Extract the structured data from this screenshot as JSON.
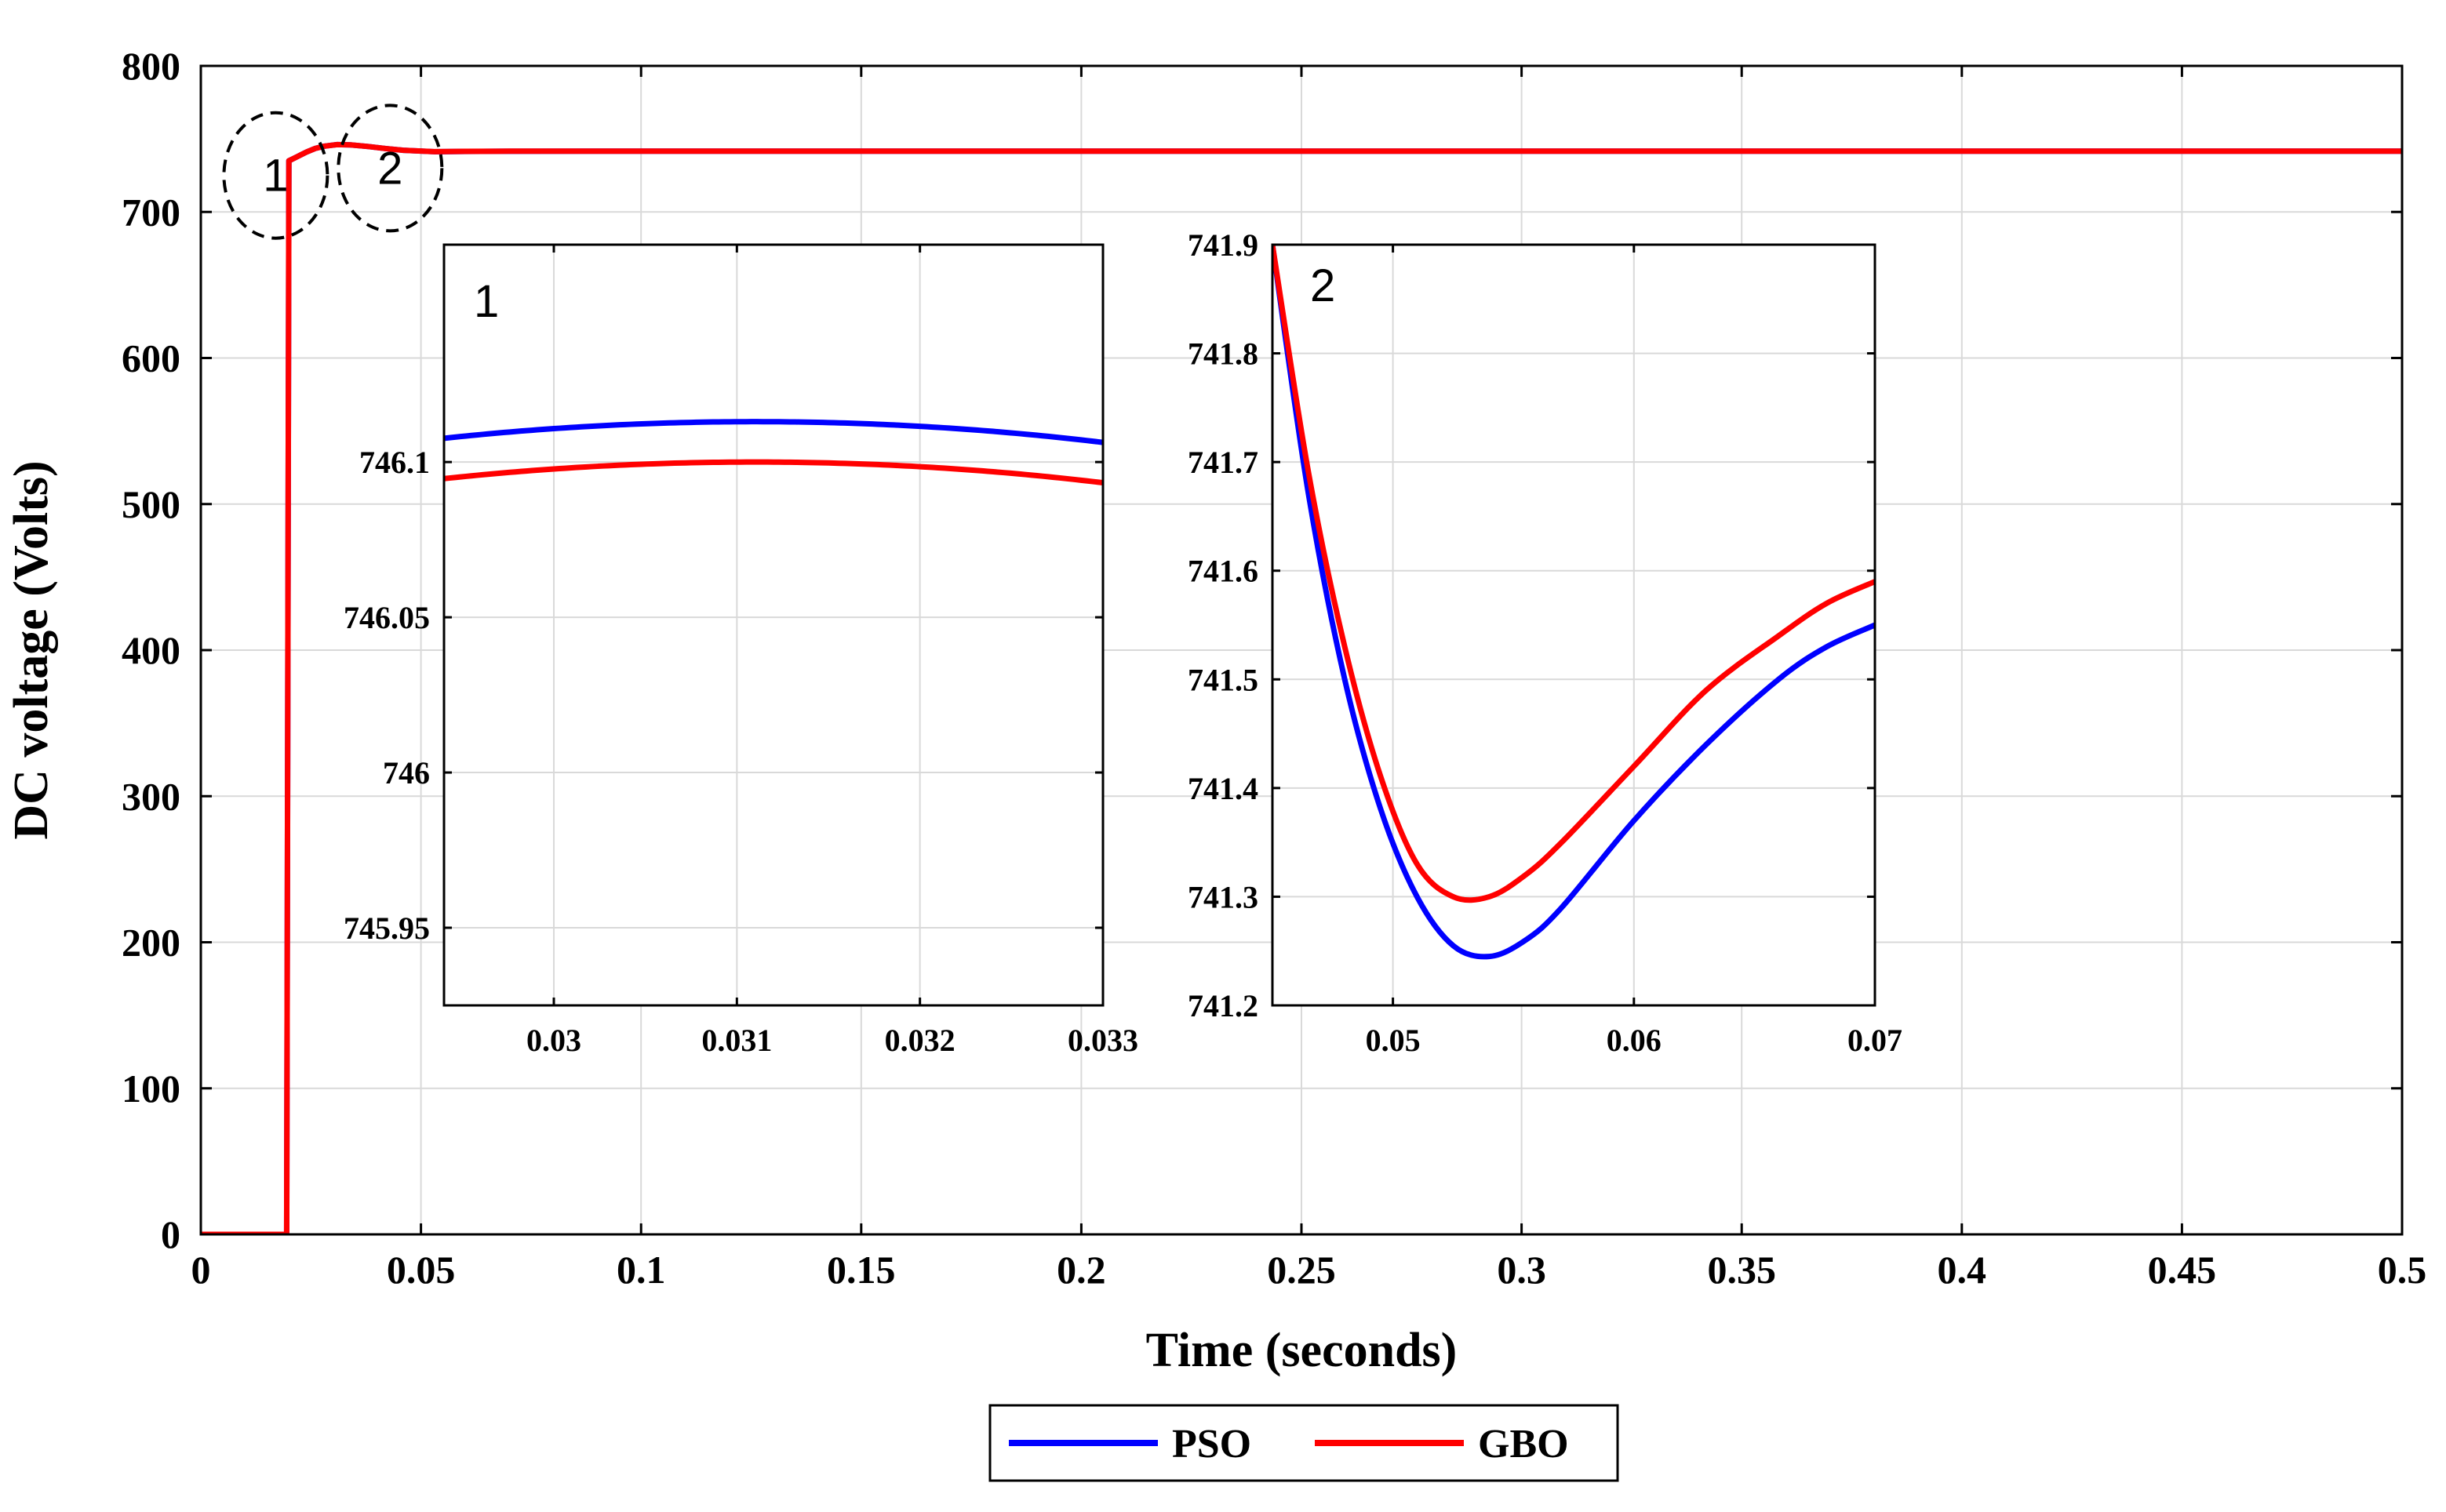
{
  "chart_data": [
    {
      "id": "main",
      "type": "line",
      "title": "",
      "xlabel": "Time (seconds)",
      "ylabel": "DC voltage (Volts)",
      "xlim": [
        0,
        0.5
      ],
      "ylim": [
        0,
        800
      ],
      "xticks": [
        0,
        0.05,
        0.1,
        0.15,
        0.2,
        0.25,
        0.3,
        0.35,
        0.4,
        0.45,
        0.5
      ],
      "xtick_labels": [
        "0",
        "0.05",
        "0.1",
        "0.15",
        "0.2",
        "0.25",
        "0.3",
        "0.35",
        "0.4",
        "0.45",
        "0.5"
      ],
      "yticks": [
        0,
        100,
        200,
        300,
        400,
        500,
        600,
        700,
        800
      ],
      "ytick_labels": [
        "0",
        "100",
        "200",
        "300",
        "400",
        "500",
        "600",
        "700",
        "800"
      ],
      "grid": true,
      "series": [
        {
          "name": "PSO",
          "color": "#0000ff",
          "x": [
            0,
            0.019,
            0.0195,
            0.02,
            0.022,
            0.024,
            0.026,
            0.028,
            0.031,
            0.034,
            0.038,
            0.042,
            0.046,
            0.053,
            0.06,
            0.07,
            0.1,
            0.5
          ],
          "y": [
            0,
            0,
            0,
            735,
            738,
            741,
            743.5,
            745,
            746.13,
            745.9,
            744.8,
            743.4,
            742.2,
            741.24,
            741.4,
            741.55,
            741.6,
            741.6
          ]
        },
        {
          "name": "GBO",
          "color": "#ff0000",
          "x": [
            0,
            0.019,
            0.0195,
            0.02,
            0.022,
            0.024,
            0.026,
            0.028,
            0.031,
            0.034,
            0.038,
            0.042,
            0.046,
            0.053,
            0.06,
            0.07,
            0.1,
            0.5
          ],
          "y": [
            0,
            0,
            0,
            735,
            738,
            741,
            743.5,
            745,
            746.1,
            745.9,
            744.8,
            743.4,
            742.2,
            741.3,
            741.45,
            741.59,
            741.6,
            741.6
          ]
        }
      ],
      "annotations": [
        {
          "label": "1",
          "x": 0.017,
          "y": 725
        },
        {
          "label": "2",
          "x": 0.043,
          "y": 730
        }
      ]
    },
    {
      "id": "inset1",
      "type": "line",
      "title": "1",
      "xlim": [
        0.0294,
        0.033
      ],
      "ylim": [
        745.925,
        746.17
      ],
      "xticks": [
        0.03,
        0.031,
        0.032,
        0.033
      ],
      "xtick_labels": [
        "0.03",
        "0.031",
        "0.032",
        "0.033"
      ],
      "yticks": [
        745.95,
        746,
        746.05,
        746.1
      ],
      "ytick_labels": [
        "745.95",
        "746",
        "746.05",
        "746.1"
      ],
      "grid": true,
      "series": [
        {
          "name": "PSO",
          "color": "#0000ff",
          "peak_x": 0.0311,
          "peak_y": 746.113,
          "curvature": 88.5
        },
        {
          "name": "GBO",
          "color": "#ff0000",
          "peak_x": 0.0311,
          "peak_y": 746.1,
          "curvature": 88.5
        }
      ]
    },
    {
      "id": "inset2",
      "type": "line",
      "title": "2",
      "xlim": [
        0.045,
        0.07
      ],
      "ylim": [
        741.2,
        741.9
      ],
      "xticks": [
        0.05,
        0.06,
        0.07
      ],
      "xtick_labels": [
        "0.05",
        "0.06",
        "0.07"
      ],
      "yticks": [
        741.2,
        741.3,
        741.4,
        741.5,
        741.6,
        741.7,
        741.8,
        741.9
      ],
      "ytick_labels": [
        "741.2",
        "741.3",
        "741.4",
        "741.5",
        "741.6",
        "741.7",
        "741.8",
        "741.9"
      ],
      "grid": true,
      "series": [
        {
          "name": "PSO",
          "color": "#0000ff",
          "x": [
            0.045,
            0.0465,
            0.048,
            0.0495,
            0.051,
            0.0525,
            0.054,
            0.0555,
            0.057,
            0.06,
            0.063,
            0.066,
            0.068,
            0.07
          ],
          "y": [
            741.9,
            741.67,
            741.5,
            741.38,
            741.3,
            741.255,
            741.245,
            741.26,
            741.29,
            741.37,
            741.44,
            741.5,
            741.53,
            741.55
          ]
        },
        {
          "name": "GBO",
          "color": "#ff0000",
          "x": [
            0.045,
            0.0465,
            0.048,
            0.0495,
            0.051,
            0.0525,
            0.054,
            0.0555,
            0.057,
            0.06,
            0.063,
            0.066,
            0.068,
            0.07
          ],
          "y": [
            741.9,
            741.69,
            741.53,
            741.41,
            741.33,
            741.3,
            741.3,
            741.32,
            741.35,
            741.42,
            741.49,
            741.54,
            741.57,
            741.59
          ]
        }
      ]
    }
  ],
  "legend": {
    "placement": "bottom-center",
    "entries": [
      {
        "label": "PSO",
        "color": "#0000ff"
      },
      {
        "label": "GBO",
        "color": "#ff0000"
      }
    ]
  }
}
